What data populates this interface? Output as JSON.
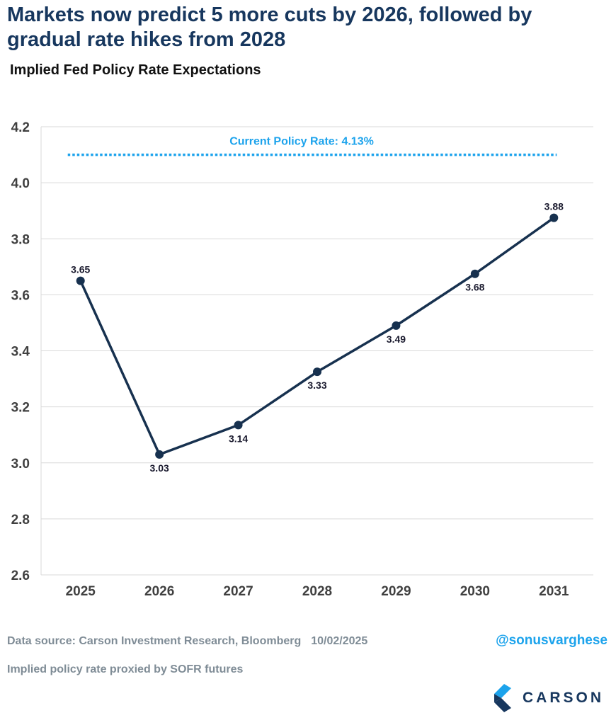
{
  "header": {
    "headline": "Markets now predict 5 more cuts by 2026, followed by gradual rate hikes from 2028",
    "subtitle": "Implied Fed Policy Rate Expectations"
  },
  "chart_data": {
    "type": "line",
    "title": "Implied Fed Policy Rate Expectations",
    "x": [
      "2025",
      "2026",
      "2027",
      "2028",
      "2029",
      "2030",
      "2031"
    ],
    "series": [
      {
        "values": [
          3.65,
          3.03,
          3.135,
          3.325,
          3.49,
          3.675,
          3.875
        ],
        "labels": [
          "3.65",
          "3.03",
          "3.14",
          "3.33",
          "3.49",
          "3.68",
          "3.88"
        ],
        "label_position": [
          "above",
          "below",
          "below",
          "below",
          "below",
          "below",
          "above"
        ],
        "color": "#17314f"
      }
    ],
    "ylim": [
      2.6,
      4.2
    ],
    "yticks": [
      "2.6",
      "2.8",
      "3.0",
      "3.2",
      "3.4",
      "3.6",
      "3.8",
      "4.0",
      "4.2"
    ],
    "reference_line": {
      "label": "Current Policy Rate: 4.13%",
      "value": 4.1,
      "style": "dotted",
      "color": "#1ca3ec"
    },
    "grid": "horizontal",
    "xlabel": "",
    "ylabel": ""
  },
  "footer": {
    "source": "Data source: Carson Investment Research, Bloomberg",
    "date": "10/02/2025",
    "handle": "@sonusvarghese",
    "note": "Implied policy rate proxied by SOFR futures",
    "brand": "CARSON"
  }
}
